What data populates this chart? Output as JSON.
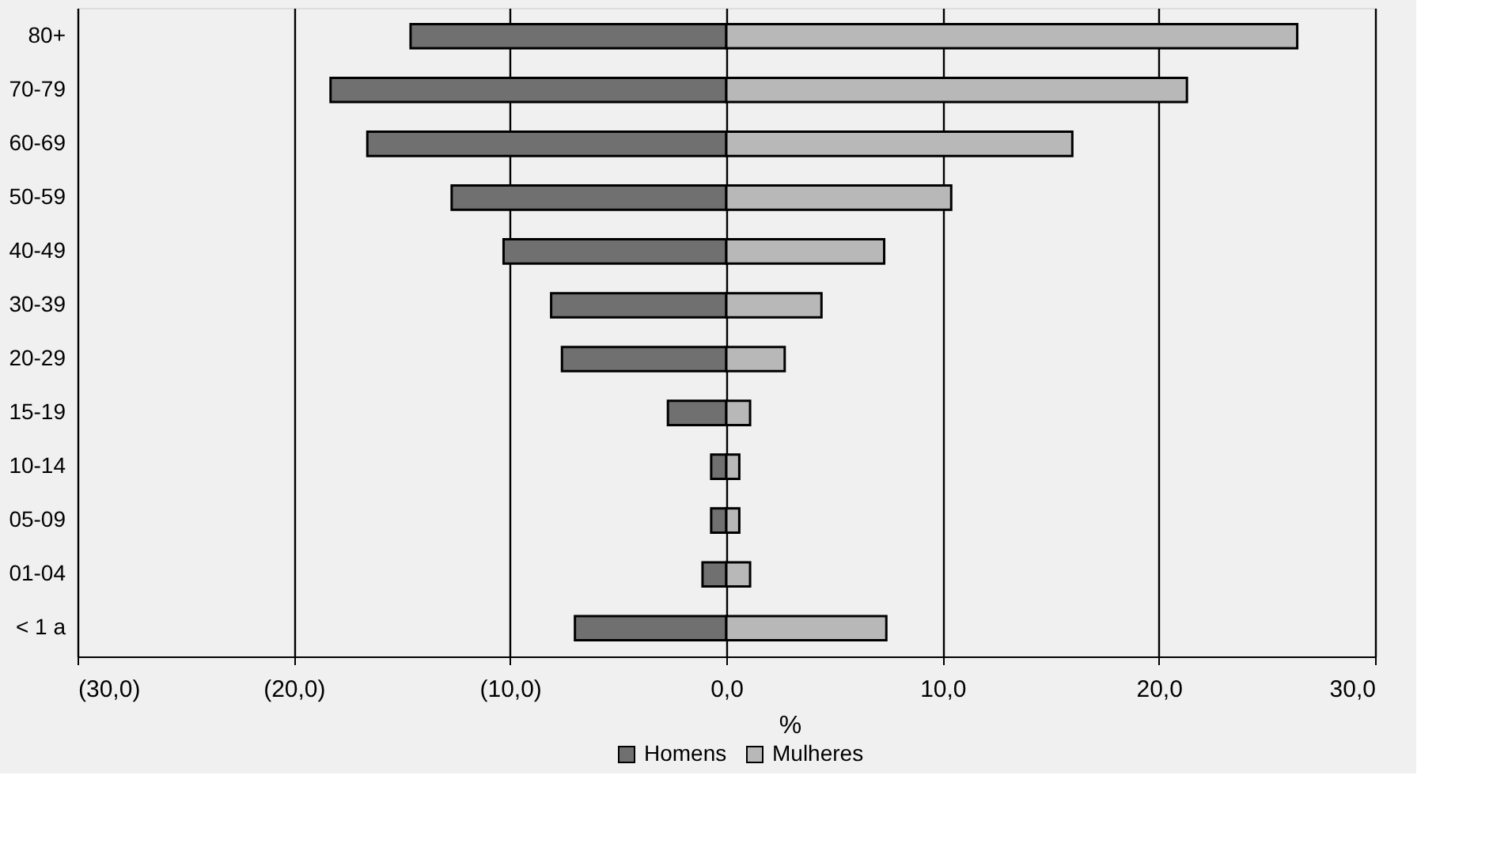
{
  "chart_data": {
    "type": "bar",
    "orientation": "horizontal",
    "xlabel": "%",
    "categories": [
      "80+",
      "70-79",
      "60-69",
      "50-59",
      "40-49",
      "30-39",
      "20-29",
      "15-19",
      "10-14",
      "05-09",
      "01-04",
      "< 1 a"
    ],
    "series": [
      {
        "name": "Homens",
        "color": "#707070",
        "values": [
          -14.6,
          -18.3,
          -16.6,
          -12.7,
          -10.3,
          -8.1,
          -7.6,
          -2.7,
          -0.7,
          -0.7,
          -1.1,
          -7.0
        ]
      },
      {
        "name": "Mulheres",
        "color": "#b8b8b8",
        "values": [
          26.4,
          21.3,
          16.0,
          10.4,
          7.3,
          4.4,
          2.7,
          1.1,
          0.6,
          0.6,
          1.1,
          7.4
        ]
      }
    ],
    "xlim": [
      -30,
      30
    ],
    "xticks": [
      {
        "value": -30,
        "label": "(30,0)"
      },
      {
        "value": -20,
        "label": "(20,0)"
      },
      {
        "value": -10,
        "label": "(10,0)"
      },
      {
        "value": 0,
        "label": "0,0"
      },
      {
        "value": 10,
        "label": "10,0"
      },
      {
        "value": 20,
        "label": "20,0"
      },
      {
        "value": 30,
        "label": "30,0"
      }
    ],
    "stacked": true,
    "grid": "x",
    "legend": "bottom"
  }
}
